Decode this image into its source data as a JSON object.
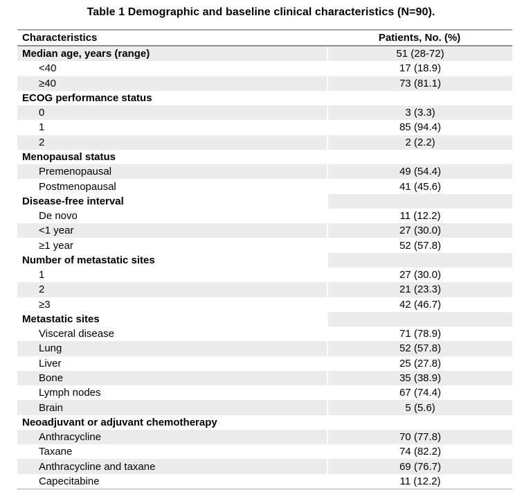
{
  "title": "Table 1 Demographic and baseline clinical characteristics (N=90).",
  "colors": {
    "row_shade": "#ececec",
    "rule_top": "#a8a8a8",
    "rule_header": "#8f8f8f",
    "rule_bottom": "#aaaaaa",
    "text": "#000000",
    "background": "#ffffff"
  },
  "table": {
    "columns": [
      {
        "label": "Characteristics",
        "align": "left"
      },
      {
        "label": "Patients, No. (%)",
        "align": "center"
      }
    ],
    "rows": [
      {
        "label": "Median age, years (range)",
        "value": "51 (28-72)",
        "bold": true,
        "indent": false,
        "shade_label": true,
        "shade_value": true
      },
      {
        "label": "<40",
        "value": "17 (18.9)",
        "bold": false,
        "indent": true,
        "shade_label": false,
        "shade_value": false
      },
      {
        "label": "≥40",
        "value": "73 (81.1)",
        "bold": false,
        "indent": true,
        "shade_label": true,
        "shade_value": true
      },
      {
        "label": "ECOG performance status",
        "value": "",
        "bold": true,
        "indent": false,
        "shade_label": false,
        "shade_value": false
      },
      {
        "label": "0",
        "value": "3 (3.3)",
        "bold": false,
        "indent": true,
        "shade_label": true,
        "shade_value": true
      },
      {
        "label": "1",
        "value": "85 (94.4)",
        "bold": false,
        "indent": true,
        "shade_label": false,
        "shade_value": false
      },
      {
        "label": "2",
        "value": "2 (2.2)",
        "bold": false,
        "indent": true,
        "shade_label": true,
        "shade_value": true
      },
      {
        "label": "Menopausal status",
        "value": "",
        "bold": true,
        "indent": false,
        "shade_label": false,
        "shade_value": false
      },
      {
        "label": "Premenopausal",
        "value": "49 (54.4)",
        "bold": false,
        "indent": true,
        "shade_label": true,
        "shade_value": true
      },
      {
        "label": "Postmenopausal",
        "value": "41 (45.6)",
        "bold": false,
        "indent": true,
        "shade_label": false,
        "shade_value": false
      },
      {
        "label": "Disease-free interval",
        "value": "",
        "bold": true,
        "indent": false,
        "shade_label": false,
        "shade_value": true
      },
      {
        "label": "De novo",
        "value": "11 (12.2)",
        "bold": false,
        "indent": true,
        "shade_label": false,
        "shade_value": false
      },
      {
        "label": "<1 year",
        "value": "27 (30.0)",
        "bold": false,
        "indent": true,
        "shade_label": true,
        "shade_value": true
      },
      {
        "label": "≥1 year",
        "value": "52 (57.8)",
        "bold": false,
        "indent": true,
        "shade_label": false,
        "shade_value": false
      },
      {
        "label": "Number of metastatic sites",
        "value": "",
        "bold": true,
        "indent": false,
        "shade_label": false,
        "shade_value": true
      },
      {
        "label": "1",
        "value": "27 (30.0)",
        "bold": false,
        "indent": true,
        "shade_label": false,
        "shade_value": false
      },
      {
        "label": "2",
        "value": "21 (23.3)",
        "bold": false,
        "indent": true,
        "shade_label": true,
        "shade_value": true
      },
      {
        "label": "≥3",
        "value": "42 (46.7)",
        "bold": false,
        "indent": true,
        "shade_label": false,
        "shade_value": false
      },
      {
        "label": "Metastatic sites",
        "value": "",
        "bold": true,
        "indent": false,
        "shade_label": false,
        "shade_value": true
      },
      {
        "label": "Visceral disease",
        "value": "71 (78.9)",
        "bold": false,
        "indent": true,
        "shade_label": false,
        "shade_value": false
      },
      {
        "label": "Lung",
        "value": "52 (57.8)",
        "bold": false,
        "indent": true,
        "shade_label": true,
        "shade_value": true
      },
      {
        "label": "Liver",
        "value": "25 (27.8)",
        "bold": false,
        "indent": true,
        "shade_label": false,
        "shade_value": false
      },
      {
        "label": "Bone",
        "value": "35 (38.9)",
        "bold": false,
        "indent": true,
        "shade_label": true,
        "shade_value": true
      },
      {
        "label": "Lymph nodes",
        "value": "67 (74.4)",
        "bold": false,
        "indent": true,
        "shade_label": false,
        "shade_value": false
      },
      {
        "label": "Brain",
        "value": "5 (5.6)",
        "bold": false,
        "indent": true,
        "shade_label": true,
        "shade_value": true
      },
      {
        "label": "Neoadjuvant or adjuvant chemotherapy",
        "value": "",
        "bold": true,
        "indent": false,
        "shade_label": false,
        "shade_value": false
      },
      {
        "label": "Anthracycline",
        "value": "70 (77.8)",
        "bold": false,
        "indent": true,
        "shade_label": true,
        "shade_value": true
      },
      {
        "label": "Taxane",
        "value": "74 (82.2)",
        "bold": false,
        "indent": true,
        "shade_label": false,
        "shade_value": false
      },
      {
        "label": "Anthracycline and taxane",
        "value": "69 (76.7)",
        "bold": false,
        "indent": true,
        "shade_label": true,
        "shade_value": true
      },
      {
        "label": "Capecitabine",
        "value": "11 (12.2)",
        "bold": false,
        "indent": true,
        "shade_label": false,
        "shade_value": false
      }
    ]
  }
}
